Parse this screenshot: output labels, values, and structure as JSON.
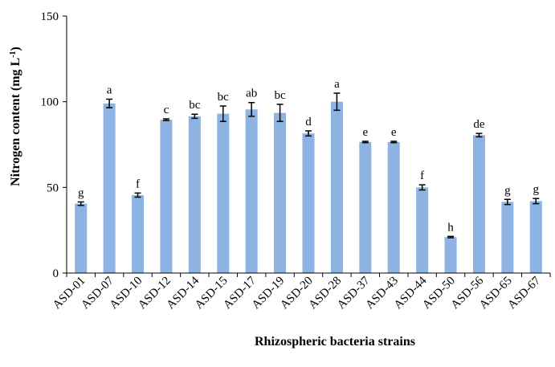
{
  "chart_data": {
    "type": "bar",
    "xlabel": "Rhizospheric bacteria strains",
    "ylabel_main": "Nitrogen content (mg L",
    "ylabel_sup": "-1",
    "ylabel_close": ")",
    "ylim": [
      0,
      150
    ],
    "yticks": [
      0,
      50,
      100,
      150
    ],
    "bar_color": "#8db3e2",
    "categories": [
      "ASD-01",
      "ASD-07",
      "ASD-10",
      "ASD-12",
      "ASD-14",
      "ASD-15",
      "ASD-17",
      "ASD-19",
      "ASD-20",
      "ASD-28",
      "ASD-37",
      "ASD-43",
      "ASD-44",
      "ASD-50",
      "ASD-56",
      "ASD-65",
      "ASD-67"
    ],
    "values": [
      40.5,
      99,
      45.5,
      89.5,
      91.5,
      93,
      95.5,
      93.5,
      81.5,
      100,
      76.5,
      76.5,
      50,
      21,
      80.5,
      41.5,
      42
    ],
    "errors": [
      1,
      2.5,
      1.2,
      0.5,
      1.2,
      4.5,
      4,
      5,
      1.5,
      5,
      0.4,
      0.4,
      1.5,
      0.4,
      1,
      1.5,
      1.5
    ],
    "significance": [
      "g",
      "a",
      "f",
      "c",
      "bc",
      "bc",
      "ab",
      "bc",
      "d",
      "a",
      "e",
      "e",
      "f",
      "h",
      "de",
      "g",
      "g"
    ],
    "grid": false,
    "legend": "none"
  }
}
